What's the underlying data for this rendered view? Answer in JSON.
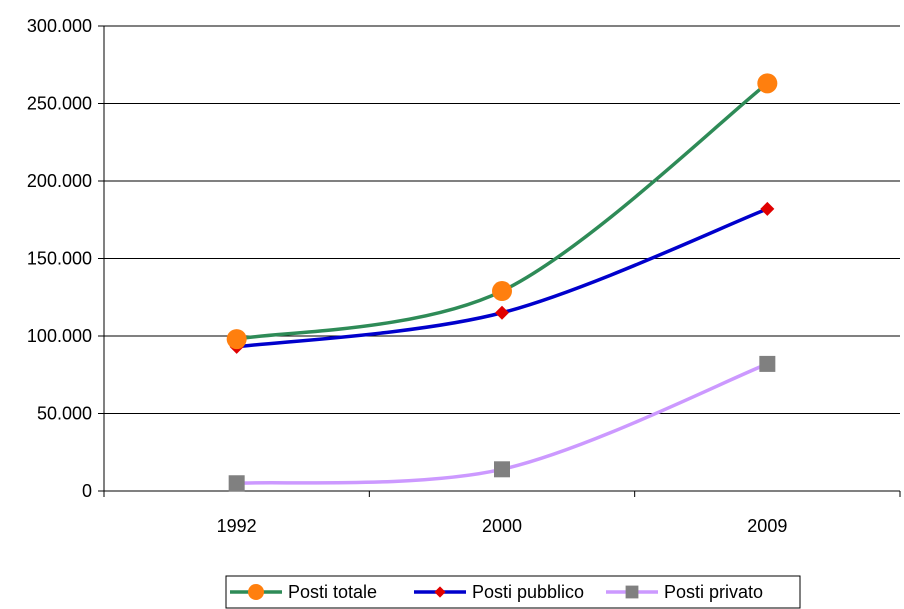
{
  "chart_data": {
    "type": "line",
    "categories": [
      "1992",
      "2000",
      "2009"
    ],
    "series": [
      {
        "name": "Posti totale",
        "values": [
          98000,
          129000,
          263000
        ],
        "color": "#2e8b57",
        "marker": "circle",
        "marker_color": "#ff7f0e"
      },
      {
        "name": "Posti pubblico",
        "values": [
          93000,
          115000,
          182000
        ],
        "color": "#0000cc",
        "marker": "diamond",
        "marker_color": "#e00000"
      },
      {
        "name": "Posti privato",
        "values": [
          5000,
          14000,
          82000
        ],
        "color": "#cc99ff",
        "marker": "square",
        "marker_color": "#808080"
      }
    ],
    "ylim": [
      0,
      300000
    ],
    "yticks": [
      0,
      50000,
      100000,
      150000,
      200000,
      250000,
      300000
    ],
    "ytick_labels": [
      "0",
      "50.000",
      "100.000",
      "150.000",
      "200.000",
      "250.000",
      "300.000"
    ],
    "grid": true,
    "legend_position": "bottom"
  }
}
